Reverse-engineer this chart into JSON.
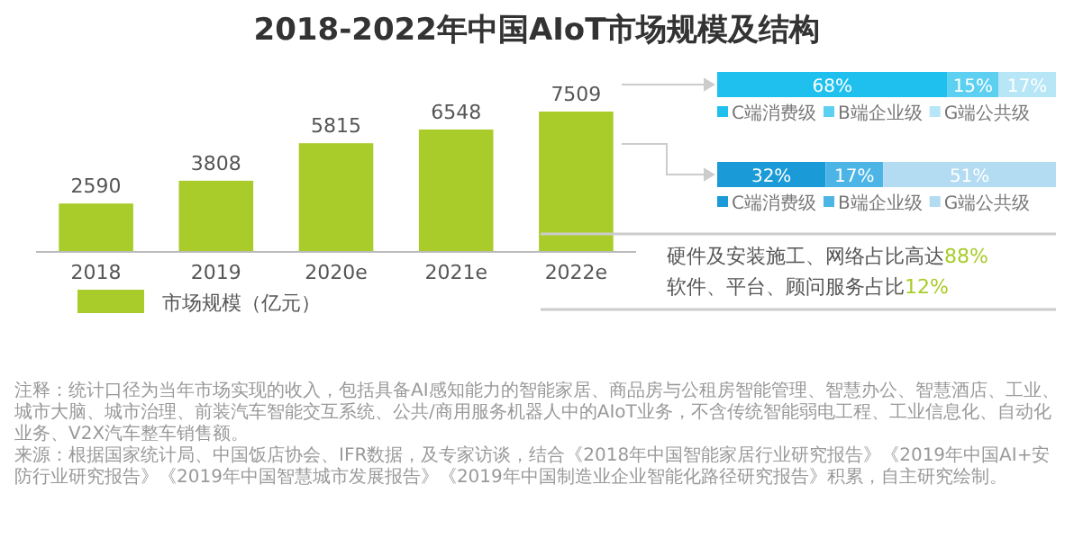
{
  "chart_data": [
    {
      "type": "bar",
      "title": "2018-2022年中国AIoT市场规模及结构",
      "categories": [
        "2018",
        "2019",
        "2020e",
        "2021e",
        "2022e"
      ],
      "series": [
        {
          "name": "市场规模（亿元）",
          "color": "#a9cc2a",
          "values": [
            2590,
            3808,
            5815,
            6548,
            7509
          ]
        }
      ],
      "data_labels": true,
      "legend": "bottom left",
      "annotations": [
        "注释：统计口径为当年市场实现的收入，包括具备AI感知能力的智能家居、商品房与公租房智能管理、智慧办公、智慧酒店、工业、城市大脑、城市治理、前装汽车智能交互系统、公共/商用服务机器人中的AIoT业务，不含传统智能弱电工程、工业信息化、自动化业务、V2X汽车整车销售额。",
        "来源：根据国家统计局、中国饭店协会、IFR数据，及专家访谈，结合《2018年中国智能家居行业研究报告》《2019年中国AI+安防行业研究报告》《2019年中国智慧城市发展报告》《2019年中国制造业企业智能化路径研究报告》积累，自主研究绘制。"
      ]
    },
    {
      "type": "bar",
      "orientation": "horizontal",
      "stacked": true,
      "categories": [
        null
      ],
      "legend": "bottom",
      "series": [
        {
          "name": "C端消费级",
          "color": "#1fc0ee",
          "values": [
            68
          ],
          "value_labels": [
            "68%"
          ]
        },
        {
          "name": "B端企业级",
          "color": "#5dd0f2",
          "values": [
            15
          ],
          "value_labels": [
            "15%"
          ]
        },
        {
          "name": "G端公共级",
          "color": "#b7e6f6",
          "values": [
            17
          ],
          "value_labels": [
            "17%"
          ]
        }
      ]
    },
    {
      "type": "bar",
      "orientation": "horizontal",
      "stacked": true,
      "categories": [
        null
      ],
      "legend": "bottom",
      "series": [
        {
          "name": "C端消费级",
          "color": "#1a9ad6",
          "values": [
            32
          ],
          "value_labels": [
            "32%"
          ]
        },
        {
          "name": "B端企业级",
          "color": "#4cb5e6",
          "values": [
            17
          ],
          "value_labels": [
            "17%"
          ]
        },
        {
          "name": "G端公共级",
          "color": "#b3dcf2",
          "values": [
            51
          ],
          "value_labels": [
            "51%"
          ]
        }
      ]
    },
    {
      "type": "other",
      "annotations": [
        "硬件及安装施工、网络占比高达88%",
        "软件、平台、顾问服务占比12%"
      ]
    }
  ]
}
